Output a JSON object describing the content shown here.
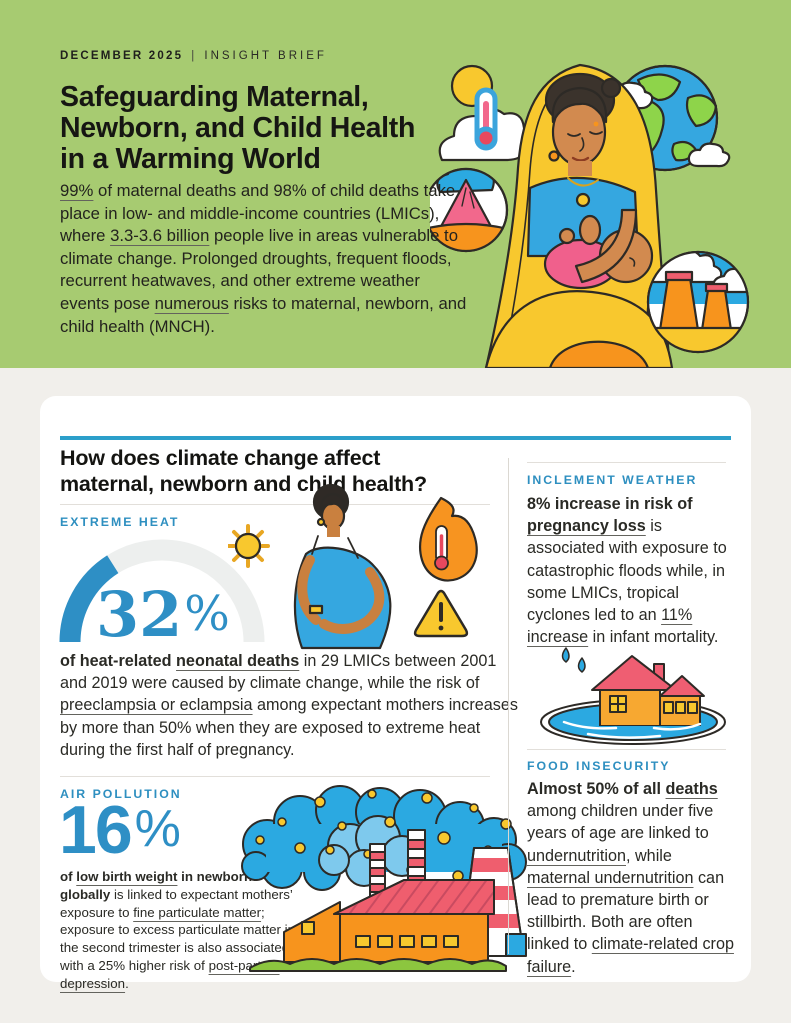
{
  "colors": {
    "hero_bg": "#a7cb71",
    "page_bg": "#f1efeb",
    "accent_blue": "#2e8fc0",
    "rule_blue": "#2b9fca",
    "stat_blue": "#2e8fc5",
    "text": "#222220",
    "hairline": "#e2dfda"
  },
  "hero": {
    "kicker": {
      "date": "DECEMBER 2025",
      "separator": "|",
      "label": "INSIGHT BRIEF"
    },
    "title": "Safeguarding Maternal,\nNewborn, and Child Health\nin a Warming World",
    "intro_runs": [
      {
        "t": "99%",
        "u": true
      },
      {
        "t": " of maternal deaths and 98% of child deaths take place in low- and middle-income countries (LMICs), where "
      },
      {
        "t": "3.3-3.6 billion",
        "u": true
      },
      {
        "t": " people live in areas vulnerable to climate change. Prolonged droughts, frequent floods, recurrent heatwaves, and other extreme weather events pose "
      },
      {
        "t": "numerous",
        "u": true
      },
      {
        "t": " risks to maternal, newborn, and child health (MNCH)."
      }
    ]
  },
  "card": {
    "section_title": "How does climate change affect\nmaternal, newborn and child health?",
    "extreme_heat": {
      "label": "EXTREME HEAT",
      "stat_value": "32",
      "stat_unit": "%",
      "gauge_percent": 32,
      "body_runs": [
        {
          "t": "of heat-related ",
          "b": true
        },
        {
          "t": "neonatal deaths",
          "b": true,
          "u": true
        },
        {
          "t": " in 29 LMICs between 2001 and 2019 were caused by climate change, while the risk of "
        },
        {
          "t": "preeclampsia or eclampsia",
          "u": true
        },
        {
          "t": " among expectant mothers increases by more than 50% when they are exposed to extreme heat during the first half of pregnancy."
        }
      ]
    },
    "air_pollution": {
      "label": "AIR POLLUTION",
      "stat_value": "16",
      "stat_unit": "%",
      "body_runs": [
        {
          "t": "of ",
          "b": true
        },
        {
          "t": "low birth weight",
          "b": true,
          "u": true
        },
        {
          "t": " in newborns globally",
          "b": true
        },
        {
          "t": " is linked to expectant mothers’ exposure to "
        },
        {
          "t": "fine particulate matter",
          "u": true
        },
        {
          "t": "; exposure to excess particulate matter in the second trimester is also associated with a 25% higher risk of "
        },
        {
          "t": "post-partum depression",
          "u": true
        },
        {
          "t": "."
        }
      ]
    },
    "inclement_weather": {
      "label": "INCLEMENT WEATHER",
      "body_runs": [
        {
          "t": "8% increase in risk of ",
          "b": true
        },
        {
          "t": "pregnancy loss",
          "b": true,
          "u": true
        },
        {
          "t": " is associated with exposure to catastrophic floods while, in some LMICs, tropical cyclones led to an "
        },
        {
          "t": "11% increase",
          "u": true
        },
        {
          "t": " in infant mortality."
        }
      ]
    },
    "food_insecurity": {
      "label": "FOOD INSECURITY",
      "body_runs": [
        {
          "t": "Almost 50% of all ",
          "b": true
        },
        {
          "t": "deaths",
          "b": true,
          "u": true
        },
        {
          "t": " among children under five years of age are linked to "
        },
        {
          "t": "undernutrition",
          "u": true
        },
        {
          "t": ", while "
        },
        {
          "t": "maternal undernutrition",
          "u": true
        },
        {
          "t": " can lead to premature birth or stillbirth. Both are often linked to "
        },
        {
          "t": "climate-related crop failure",
          "u": true
        },
        {
          "t": "."
        }
      ]
    }
  },
  "icons": {
    "hero": [
      "sun-icon",
      "cloud-icon",
      "thermometer-icon",
      "earth-icon",
      "volcano-icon",
      "power-plant-icon",
      "mother-and-baby-illustration"
    ],
    "extreme_heat": [
      "sun-icon",
      "pregnant-woman-illustration",
      "flame-icon",
      "warning-triangle-icon",
      "heat-gauge-chart"
    ],
    "air_pollution": [
      "smog-cloud-icon",
      "factory-icon"
    ],
    "inclement_weather": [
      "rain-drops-icon",
      "flooded-house-icon"
    ]
  }
}
